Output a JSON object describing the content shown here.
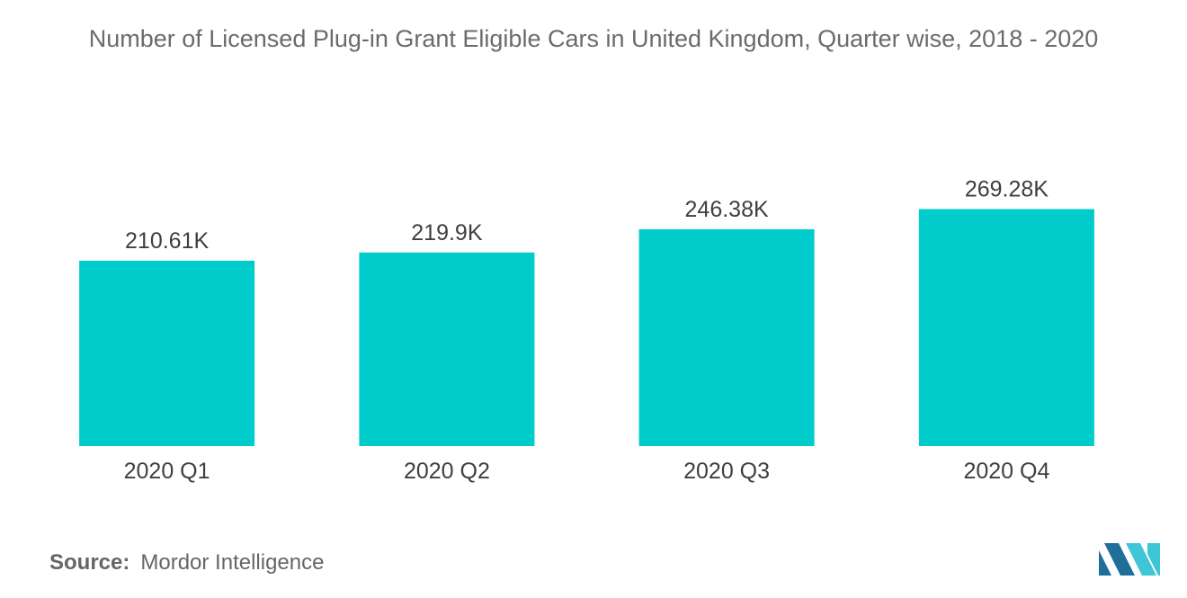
{
  "chart_data": {
    "type": "bar",
    "title": "Number of Licensed Plug-in Grant Eligible Cars in United Kingdom, Quarter wise, 2018 - 2020",
    "categories": [
      "2020 Q1",
      "2020 Q2",
      "2020 Q3",
      "2020 Q4"
    ],
    "values": [
      210.61,
      219.9,
      246.38,
      269.28
    ],
    "value_labels": [
      "210.61K",
      "219.9K",
      "246.38K",
      "269.28K"
    ],
    "xlabel": "",
    "ylabel": "",
    "ylim": [
      0,
      280
    ],
    "grid": false,
    "legend": "none",
    "bar_color": "#00cccc"
  },
  "footer": {
    "source_key": "Source:",
    "source_value": "Mordor Intelligence"
  },
  "logo": {
    "icon": "mordor-intelligence-logo-icon",
    "color_dark": "#1f6f9a",
    "color_light": "#3fc6d6"
  }
}
